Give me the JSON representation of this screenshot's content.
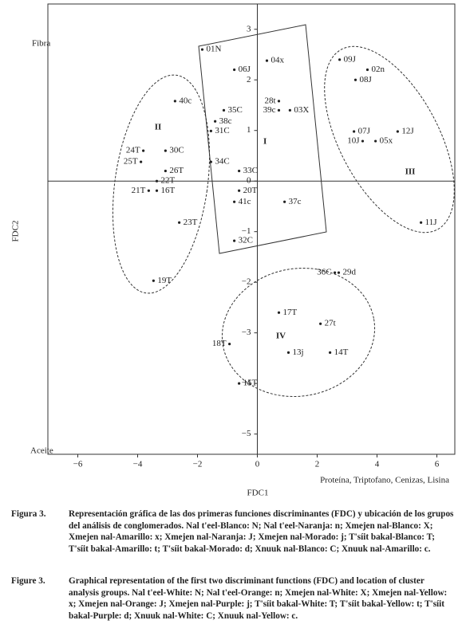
{
  "chart_data": {
    "type": "scatter",
    "x_label": "FDC1",
    "y_label": "FDC2",
    "xlim": [
      -7,
      6.6
    ],
    "ylim": [
      -5.4,
      3.5
    ],
    "xticks": [
      {
        "value": -6,
        "label": "−6"
      },
      {
        "value": -4,
        "label": "−4"
      },
      {
        "value": -2,
        "label": "−2"
      },
      0,
      2,
      4,
      6
    ],
    "yticks": [
      3,
      2,
      1,
      0,
      {
        "value": -1,
        "label": "−1"
      },
      {
        "value": -2,
        "label": "−2"
      },
      {
        "value": -3,
        "label": "−3"
      },
      {
        "value": -4,
        "label": "−4"
      },
      {
        "value": -5,
        "label": "−5"
      }
    ],
    "color": "#222222",
    "point_labels": [
      "01N",
      "04x",
      "06J",
      "09J",
      "02n",
      "08J",
      "40c",
      "28t",
      "35C",
      "39c",
      "03X",
      "38c",
      "31C",
      "07J",
      "12J",
      "10J",
      "05x",
      "24T",
      "30C",
      "25T",
      "34C",
      "26T",
      "33C",
      "22T",
      "21T",
      "16T",
      "20T",
      "41c",
      "37c",
      "23T",
      "11J",
      "32C",
      "36C",
      "29d",
      "19T",
      "17T",
      "27t",
      "18T",
      "13j",
      "14T",
      "15T"
    ],
    "x": [
      -1.84,
      0.32,
      -0.77,
      2.75,
      3.68,
      3.28,
      -2.75,
      0.72,
      -1.12,
      0.72,
      1.09,
      -1.41,
      -1.55,
      3.23,
      4.69,
      3.52,
      3.95,
      -3.81,
      -3.07,
      -3.89,
      -1.55,
      -3.07,
      -0.61,
      -3.36,
      -3.63,
      -3.36,
      -0.61,
      -0.77,
      0.91,
      -2.61,
      5.47,
      -0.77,
      2.59,
      2.72,
      -3.47,
      0.72,
      2.11,
      -0.93,
      1.04,
      2.43,
      -0.61
    ],
    "values": [
      2.6,
      2.38,
      2.2,
      2.4,
      2.2,
      2.0,
      1.58,
      1.58,
      1.4,
      1.4,
      1.4,
      1.18,
      0.99,
      0.98,
      0.98,
      0.79,
      0.79,
      0.6,
      0.6,
      0.38,
      0.38,
      0.2,
      0.2,
      0.0,
      -0.19,
      -0.19,
      -0.19,
      -0.41,
      -0.41,
      -0.82,
      -0.82,
      -1.18,
      -1.81,
      -1.81,
      -1.97,
      -2.6,
      -2.82,
      -3.22,
      -3.39,
      -3.39,
      -4.0
    ],
    "annotations": [
      "I",
      "II",
      "III",
      "IV",
      "Fibra",
      "Aceite",
      "Proteína, Triptofano, Cenizas, Lisina"
    ]
  },
  "caption": {
    "es_label": "Figura 3.",
    "es_text": "Representación gráfica de las dos primeras funciones discriminantes (FDC) y ubicación de los grupos del análisis de conglomerados. Nal t'eel-Blanco: N; Nal t'eel-Naranja: n; Xmejen nal-Blanco: X; Xmejen nal-Amarillo: x; Xmejen nal-Naranja: J; Xmejen nal-Morado: j; T'síit bakal-Blanco: T; T'síit bakal-Amarillo: t; T'síit bakal-Morado: d; Xnuuk nal-Blanco: C; Xnuuk nal-Amarillo: c.",
    "en_label": "Figure 3.",
    "en_text": "Graphical representation of the first two discriminant functions (FDC) and location of cluster analysis groups. Nal t'eel-White: N; Nal t'eel-Orange: n; Xmejen nal-White: X; Xmejen nal-Yellow: x; Xmejen nal-Orange: J; Xmejen nal-Purple: j; T'síit bakal-White: T; T'síit bakal-Yellow: t; T'síit bakal-Purple: d; Xnuuk nal-White: C; Xnuuk nal-Yellow: c."
  }
}
